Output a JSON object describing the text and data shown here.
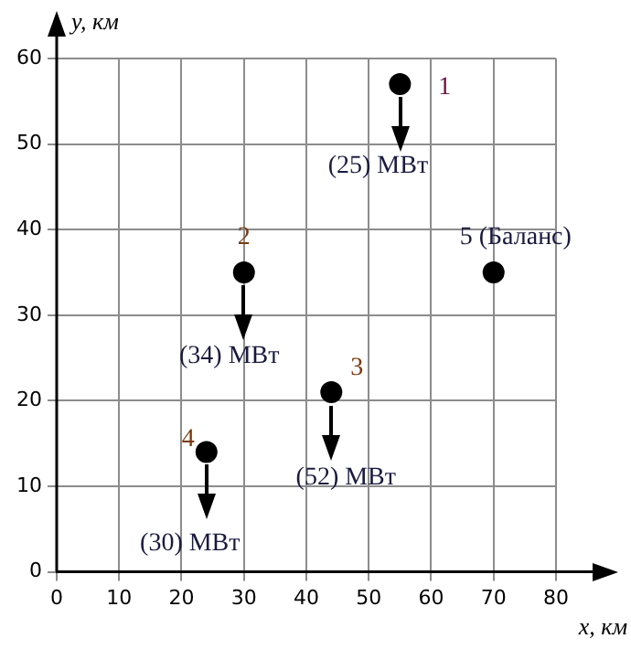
{
  "chart_data": {
    "type": "scatter",
    "xlabel": "x, км",
    "ylabel": "y, км",
    "x": [
      55,
      30,
      44,
      24,
      70
    ],
    "values": [
      57,
      35,
      21,
      14,
      35
    ],
    "color": "#000000",
    "marker": "circle",
    "xlim": [
      0,
      80
    ],
    "ylim": [
      0,
      60
    ],
    "xticks": [
      0,
      10,
      20,
      30,
      40,
      50,
      60,
      70,
      80
    ],
    "yticks": [
      0,
      10,
      20,
      30,
      40,
      50,
      60
    ],
    "grid": true,
    "legend": false,
    "annotations": [
      {
        "text": "1",
        "x": 55,
        "y": 57
      },
      {
        "text": "(25) МВт",
        "x": 55,
        "y": 57
      },
      {
        "text": "2",
        "x": 30,
        "y": 35
      },
      {
        "text": "(34) МВт",
        "x": 30,
        "y": 35
      },
      {
        "text": "3",
        "x": 44,
        "y": 21
      },
      {
        "text": "(52) МВт",
        "x": 44,
        "y": 21
      },
      {
        "text": "4",
        "x": 24,
        "y": 14
      },
      {
        "text": "(30) МВт",
        "x": 24,
        "y": 14
      },
      {
        "text": "5 (Баланс)",
        "x": 70,
        "y": 35
      }
    ]
  }
}
